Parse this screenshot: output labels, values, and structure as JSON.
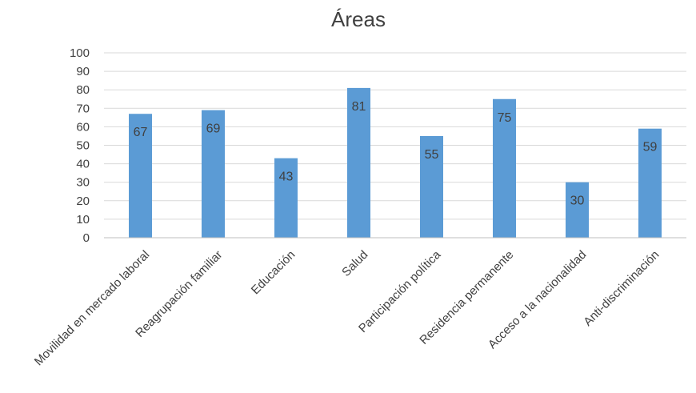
{
  "chart_data": {
    "type": "bar",
    "title": "Áreas",
    "categories": [
      "Movilidad en mercado laboral",
      "Reagrupación familiar",
      "Educación",
      "Salud",
      "Participación política",
      "Residencia permanente",
      "Acceso a la nacionalidad",
      "Anti-discriminación"
    ],
    "values": [
      67,
      69,
      43,
      81,
      55,
      75,
      30,
      59
    ],
    "data_labels": [
      "67",
      "69",
      "43",
      "81",
      "55",
      "75",
      "30",
      "59"
    ],
    "xlabel": "",
    "ylabel": "",
    "ylim": [
      0,
      100
    ],
    "yticks": [
      "0",
      "10",
      "20",
      "30",
      "40",
      "50",
      "60",
      "70",
      "80",
      "90",
      "100"
    ],
    "grid": true,
    "legend": "none",
    "bar_color": "#5b9bd5"
  }
}
